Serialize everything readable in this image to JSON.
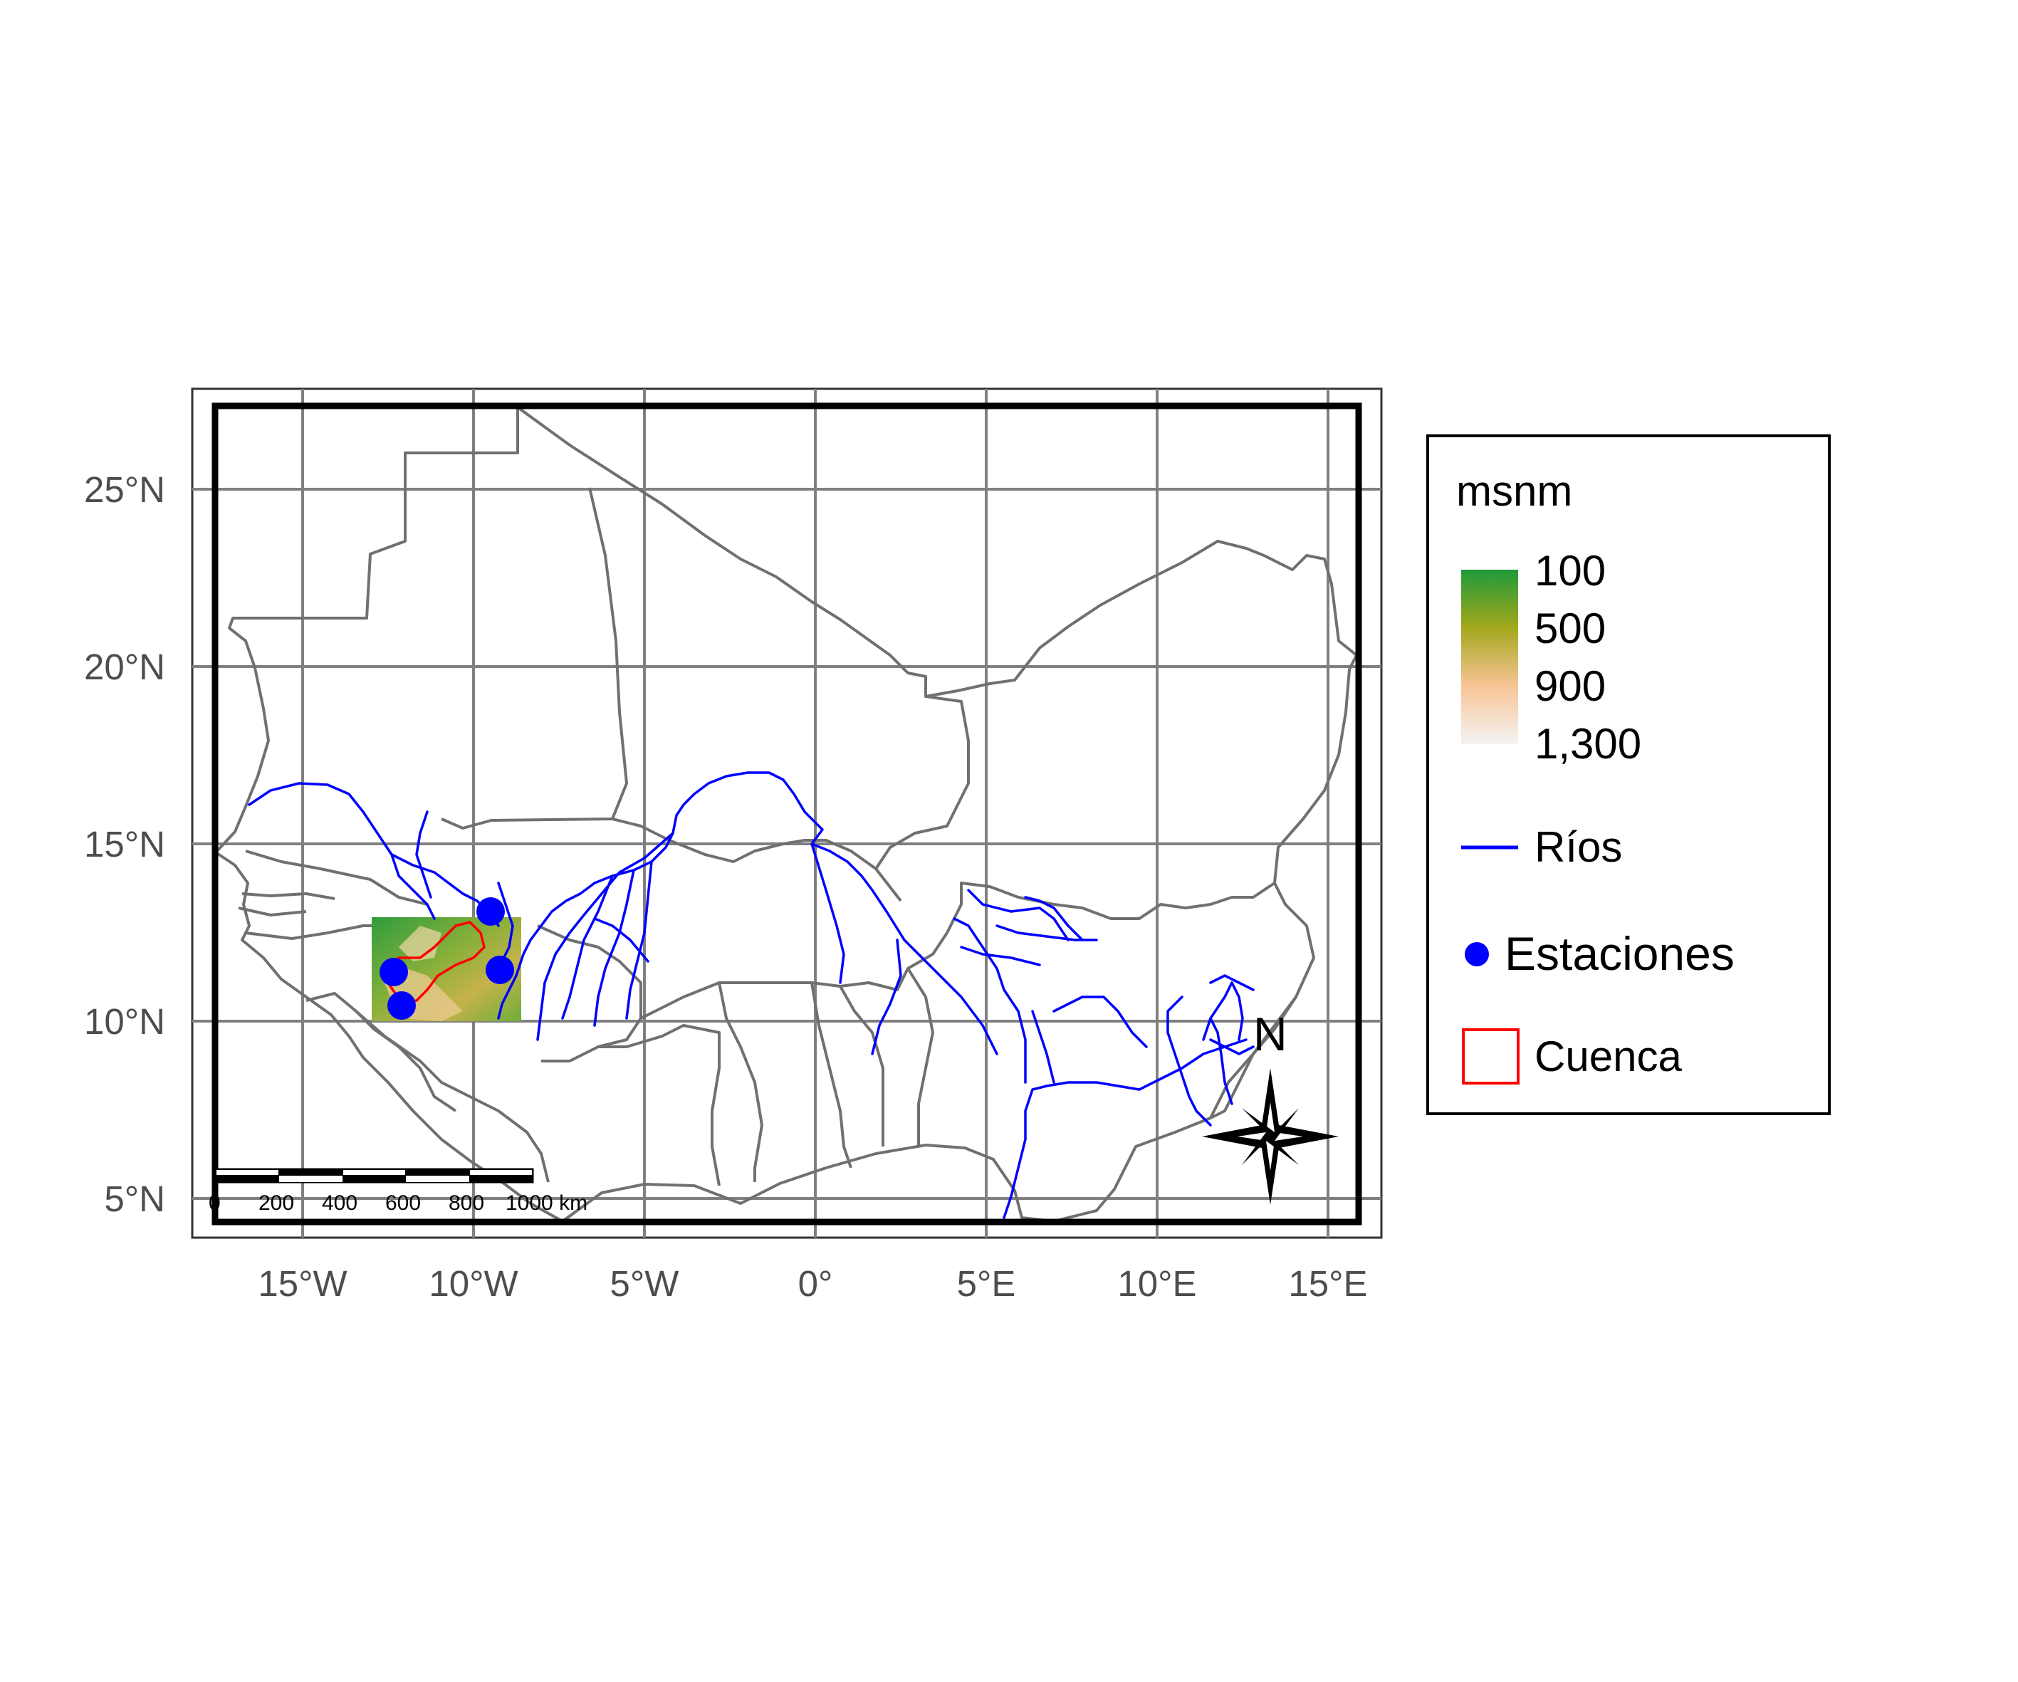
{
  "map": {
    "y_ticks": [
      "25°N",
      "20°N",
      "15°N",
      "10°N",
      "5°N"
    ],
    "x_ticks": [
      "15°W",
      "10°W",
      "5°W",
      "0°",
      "5°E",
      "10°E",
      "15°E"
    ]
  },
  "legend": {
    "title": "msnm",
    "elevation_labels": [
      "100",
      "500",
      "900",
      "1,300"
    ],
    "elevation_colors": [
      "#2ca02c",
      "#a3a81c",
      "#f5c08a",
      "#f2f2f2"
    ],
    "rivers_label": "Ríos",
    "stations_label": "Estaciones",
    "basin_label": "Cuenca"
  },
  "scale_bar": {
    "labels": [
      "0",
      "200",
      "400",
      "600",
      "800",
      "1000 km"
    ]
  },
  "north_arrow": {
    "label": "N"
  },
  "colors": {
    "rivers": "#0000ff",
    "stations": "#0000ff",
    "basin": "#ff0000",
    "borders": "#707070",
    "grid": "#808080"
  }
}
